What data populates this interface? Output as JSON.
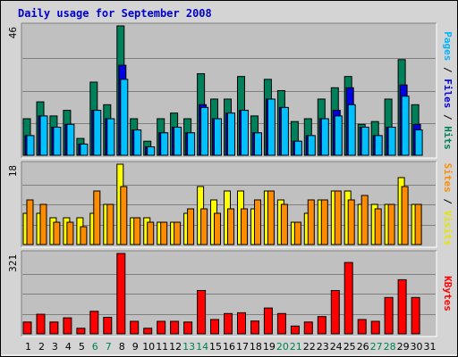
{
  "chart_data": {
    "type": "bar",
    "title": "Daily usage for September 2008",
    "days": [
      "1",
      "2",
      "3",
      "4",
      "5",
      "6",
      "7",
      "8",
      "9",
      "10",
      "11",
      "12",
      "13",
      "14",
      "15",
      "16",
      "17",
      "18",
      "19",
      "20",
      "21",
      "22",
      "23",
      "24",
      "25",
      "26",
      "27",
      "28",
      "29",
      "30",
      "31"
    ],
    "weekend_days": [
      "6",
      "7",
      "13",
      "14",
      "20",
      "21",
      "27",
      "28"
    ],
    "colors": {
      "title": "#0000cc",
      "weekday_label": "#000000",
      "weekend_label": "#00804c",
      "grid": "#808080",
      "panel_bg": "#c0c0c0",
      "frame_bg": "#d4d4d4",
      "hits": "#00805a",
      "files": "#0000e0",
      "pages": "#00c0ff",
      "visits": "#ffff00",
      "sites": "#ff8c00",
      "kbytes": "#ff0000",
      "label_hits": "#00805a",
      "label_files": "#0000e0",
      "label_pages": "#00b4ff",
      "label_visits": "#e6e600",
      "label_sites": "#ff8c00",
      "label_kbytes": "#ff0000"
    },
    "panels": [
      {
        "id": "hits",
        "ymax": 46,
        "ymax_label": "46",
        "side_labels": [
          {
            "text": "Pages",
            "color_key": "label_pages"
          },
          {
            "text": " / ",
            "color_key": "weekday_label"
          },
          {
            "text": "Files",
            "color_key": "label_files"
          },
          {
            "text": " / ",
            "color_key": "weekday_label"
          },
          {
            "text": "Hits",
            "color_key": "label_hits"
          }
        ],
        "series": [
          {
            "name": "Hits",
            "color_key": "hits",
            "values": [
              13,
              19,
              14,
              16,
              6,
              26,
              18,
              46,
              13,
              5,
              13,
              15,
              13,
              29,
              20,
              20,
              28,
              14,
              27,
              23,
              12,
              13,
              20,
              24,
              28,
              11,
              12,
              20,
              34,
              18,
              0
            ]
          },
          {
            "name": "Files",
            "color_key": "files",
            "values": [
              7,
              14,
              10,
              11,
              4,
              16,
              13,
              32,
              9,
              3,
              8,
              10,
              8,
              18,
              13,
              15,
              16,
              8,
              20,
              17,
              5,
              7,
              13,
              16,
              24,
              10,
              7,
              10,
              25,
              11,
              0
            ]
          },
          {
            "name": "Pages",
            "color_key": "pages",
            "values": [
              7,
              14,
              10,
              11,
              4,
              16,
              13,
              27,
              9,
              3,
              8,
              10,
              8,
              17,
              13,
              15,
              16,
              8,
              20,
              17,
              5,
              7,
              13,
              14,
              18,
              10,
              7,
              10,
              21,
              9,
              0
            ]
          }
        ]
      },
      {
        "id": "visits",
        "ymax": 18,
        "ymax_label": "18",
        "side_labels": [
          {
            "text": "Sites",
            "color_key": "label_sites"
          },
          {
            "text": " / ",
            "color_key": "weekday_label"
          },
          {
            "text": "Visits",
            "color_key": "label_visits"
          }
        ],
        "series": [
          {
            "name": "Visits",
            "color_key": "visits",
            "values": [
              7,
              7,
              6,
              6,
              6,
              7,
              9,
              18,
              6,
              6,
              5,
              5,
              7,
              13,
              10,
              12,
              12,
              8,
              12,
              10,
              5,
              7,
              10,
              12,
              12,
              9,
              9,
              9,
              15,
              9,
              0
            ]
          },
          {
            "name": "Sites",
            "color_key": "sites",
            "values": [
              10,
              9,
              5,
              5,
              4,
              12,
              9,
              13,
              6,
              5,
              5,
              5,
              8,
              8,
              7,
              8,
              8,
              10,
              12,
              9,
              5,
              10,
              10,
              12,
              10,
              11,
              8,
              9,
              13,
              9,
              0
            ]
          }
        ]
      },
      {
        "id": "kbytes",
        "ymax": 321,
        "ymax_label": "321",
        "side_labels": [
          {
            "text": "KBytes",
            "color_key": "label_kbytes"
          }
        ],
        "series": [
          {
            "name": "KBytes",
            "color_key": "kbytes",
            "values": [
              47,
              78,
              47,
              64,
              22,
              90,
              66,
              321,
              50,
              22,
              50,
              50,
              47,
              173,
              57,
              81,
              84,
              51,
              103,
              81,
              31,
              47,
              69,
              173,
              285,
              57,
              50,
              145,
              216,
              145,
              0
            ]
          }
        ]
      }
    ]
  }
}
